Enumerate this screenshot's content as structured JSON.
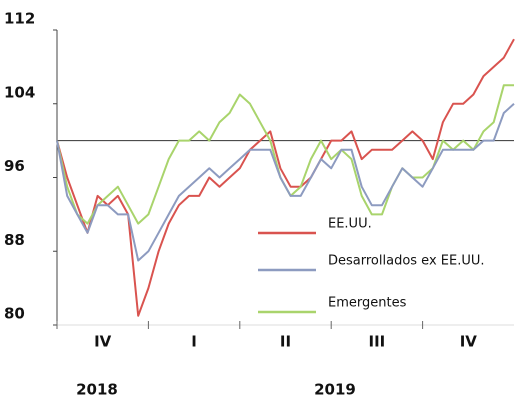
{
  "chart_data": {
    "type": "line",
    "x_labels": [
      "IV",
      "I",
      "II",
      "III",
      "IV"
    ],
    "years": [
      "2018",
      "2019"
    ],
    "ylim": [
      80,
      112
    ],
    "yticks": [
      80,
      88,
      96,
      104,
      112
    ],
    "reference_line": 100,
    "series": [
      {
        "name": "EE.UU.",
        "color": "#d9534f",
        "values": [
          100,
          96,
          93,
          90,
          94,
          93,
          94,
          92,
          81,
          84,
          88,
          91,
          93,
          94,
          94,
          96,
          95,
          96,
          97,
          99,
          100,
          101,
          97,
          95,
          95,
          96,
          98,
          100,
          100,
          101,
          98,
          99,
          99,
          99,
          100,
          101,
          100,
          98,
          102,
          104,
          104,
          105,
          107,
          108,
          109,
          111
        ]
      },
      {
        "name": "Desarrollados ex EE.UU.",
        "color": "#8d9bc0",
        "values": [
          100,
          94,
          92,
          90,
          93,
          93,
          92,
          92,
          87,
          88,
          90,
          92,
          94,
          95,
          96,
          97,
          96,
          97,
          98,
          99,
          99,
          99,
          96,
          94,
          94,
          96,
          98,
          97,
          99,
          99,
          95,
          93,
          93,
          95,
          97,
          96,
          95,
          97,
          99,
          99,
          99,
          99,
          100,
          100,
          103,
          104
        ]
      },
      {
        "name": "Emergentes",
        "color": "#a9d46c",
        "values": [
          100,
          95,
          92,
          91,
          93,
          94,
          95,
          93,
          91,
          92,
          95,
          98,
          100,
          100,
          101,
          100,
          102,
          103,
          105,
          104,
          102,
          100,
          96,
          94,
          95,
          98,
          100,
          98,
          99,
          98,
          94,
          92,
          92,
          95,
          97,
          96,
          96,
          97,
          100,
          99,
          100,
          99,
          101,
          102,
          106,
          106
        ]
      }
    ]
  }
}
